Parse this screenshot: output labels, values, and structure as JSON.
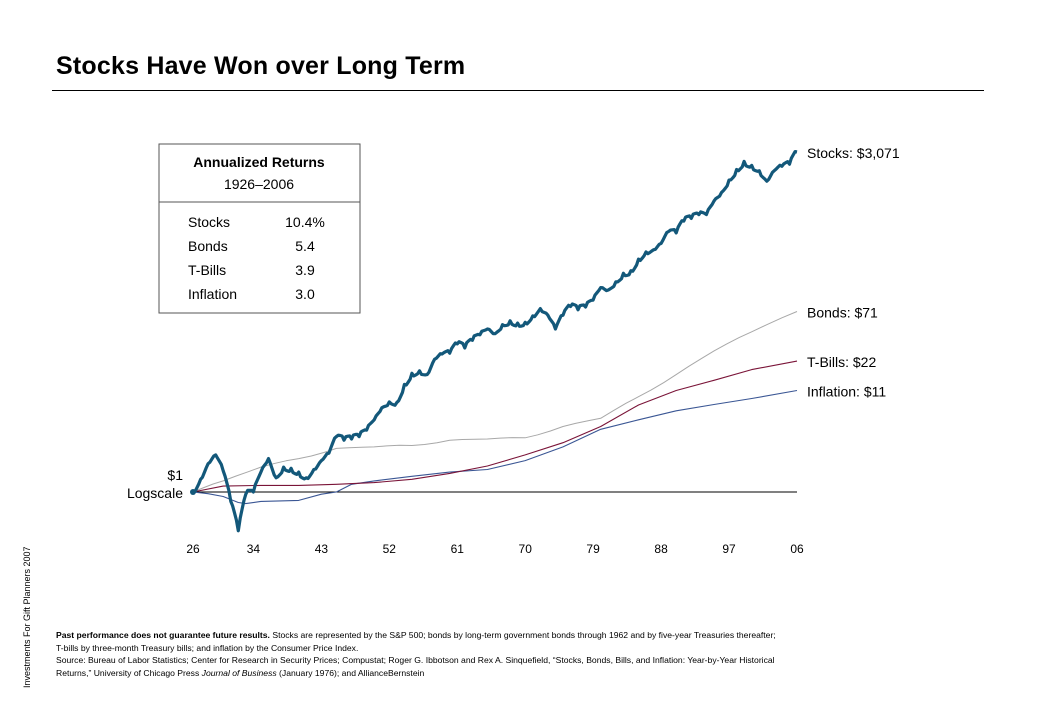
{
  "title": "Stocks Have Won over Long Term",
  "side_note": "Investments For Gift Planners 2007",
  "footnote": {
    "bold": "Past performance does not guarantee future results.",
    "line1": " Stocks are represented by the S&P 500; bonds by long-term government bonds through 1962 and by five-year Treasuries thereafter;",
    "line2": "T-bills by three-month Treasury bills; and inflation by the Consumer Price Index.",
    "line3": "Source: Bureau of Labor Statistics; Center for Research in Security Prices; Compustat; Roger G. Ibbotson and Rex A. Sinquefield, “Stocks, Bonds, Bills, and Inflation: Year-by-Year Historical",
    "line4_a": "Returns,” University of Chicago Press ",
    "line4_journal": "Journal of Business",
    "line4_b": " (January 1976); and AllianceBernstein"
  },
  "returns_box": {
    "title": "Annualized  Returns",
    "period": "1926–2006",
    "rows": [
      {
        "label": "Stocks",
        "value": "10.4%"
      },
      {
        "label": "Bonds",
        "value": "5.4"
      },
      {
        "label": "T-Bills",
        "value": "3.9"
      },
      {
        "label": "Inflation",
        "value": "3.0"
      }
    ]
  },
  "chart_data": {
    "type": "line",
    "title": "Stocks Have Won over Long Term",
    "y_scale": "log",
    "baseline_label": "$1",
    "baseline_sublabel": "Logscale",
    "x_tick_labels": [
      "26",
      "34",
      "43",
      "52",
      "61",
      "70",
      "79",
      "88",
      "97",
      "06"
    ],
    "x_tick_years": [
      1926,
      1934,
      1943,
      1952,
      1961,
      1970,
      1979,
      1988,
      1997,
      2006
    ],
    "xlim": [
      1926,
      2006
    ],
    "ylim": [
      0.5,
      3500
    ],
    "grid": false,
    "legend": "end-of-line labels",
    "colors": {
      "stocks": "#13587a",
      "bonds": "#a8a8a8",
      "tbills": "#7a1438",
      "inflation": "#3a5694"
    },
    "series": [
      {
        "key": "stocks",
        "name": "Stocks",
        "end_label": "Stocks: $3,071",
        "x": [
          1926,
          1927,
          1928,
          1929,
          1930,
          1931,
          1932,
          1933,
          1934,
          1935,
          1936,
          1937,
          1938,
          1939,
          1940,
          1941,
          1942,
          1943,
          1944,
          1945,
          1946,
          1947,
          1948,
          1949,
          1950,
          1951,
          1952,
          1953,
          1954,
          1955,
          1956,
          1957,
          1958,
          1959,
          1960,
          1961,
          1962,
          1963,
          1964,
          1965,
          1966,
          1967,
          1968,
          1969,
          1970,
          1971,
          1972,
          1973,
          1974,
          1975,
          1976,
          1977,
          1978,
          1979,
          1980,
          1981,
          1982,
          1983,
          1984,
          1985,
          1986,
          1987,
          1988,
          1989,
          1990,
          1991,
          1992,
          1993,
          1994,
          1995,
          1996,
          1997,
          1998,
          1999,
          2000,
          2001,
          2002,
          2003,
          2004,
          2005,
          2006
        ],
        "values": [
          1,
          1.35,
          1.95,
          2.4,
          1.65,
          0.8,
          0.4,
          0.95,
          1.0,
          1.6,
          2.2,
          1.4,
          1.8,
          1.75,
          1.6,
          1.4,
          1.7,
          2.1,
          2.5,
          3.7,
          3.4,
          3.5,
          3.7,
          4.3,
          5.5,
          7.3,
          8.4,
          8.3,
          12.7,
          16.5,
          17.5,
          16,
          23,
          26,
          26.5,
          33,
          30,
          36,
          41,
          47,
          42,
          52,
          57,
          54,
          55,
          64,
          76,
          65,
          47,
          65,
          80,
          74,
          79,
          93,
          125,
          118,
          143,
          175,
          186,
          245,
          290,
          305,
          355,
          470,
          455,
          600,
          640,
          700,
          700,
          965,
          1180,
          1580,
          2030,
          2460,
          2240,
          1970,
          1540,
          1980,
          2190,
          2300,
          3071
        ]
      },
      {
        "key": "bonds",
        "name": "Bonds",
        "end_label": "Bonds: $71",
        "x": [
          1926,
          1930,
          1935,
          1940,
          1945,
          1950,
          1955,
          1960,
          1965,
          1970,
          1975,
          1980,
          1985,
          1990,
          1995,
          2000,
          2006
        ],
        "values": [
          1,
          1.3,
          1.8,
          2.2,
          2.8,
          2.9,
          3.0,
          3.4,
          3.5,
          3.6,
          4.7,
          5.7,
          9.5,
          16,
          28,
          44,
          71
        ]
      },
      {
        "key": "tbills",
        "name": "T-Bills",
        "end_label": "T-Bills: $22",
        "x": [
          1926,
          1930,
          1935,
          1940,
          1945,
          1950,
          1955,
          1960,
          1965,
          1970,
          1975,
          1980,
          1985,
          1990,
          1995,
          2000,
          2006
        ],
        "values": [
          1,
          1.15,
          1.17,
          1.17,
          1.2,
          1.25,
          1.35,
          1.55,
          1.85,
          2.4,
          3.2,
          4.7,
          7.8,
          11,
          14,
          18,
          22
        ]
      },
      {
        "key": "inflation",
        "name": "Inflation",
        "end_label": "Inflation: $11",
        "x": [
          1926,
          1928,
          1930,
          1932,
          1933,
          1935,
          1940,
          1943,
          1945,
          1947,
          1950,
          1955,
          1960,
          1965,
          1970,
          1975,
          1980,
          1985,
          1990,
          1995,
          2000,
          2006
        ],
        "values": [
          1,
          0.96,
          0.9,
          0.78,
          0.76,
          0.8,
          0.82,
          0.95,
          1.0,
          1.2,
          1.3,
          1.45,
          1.6,
          1.7,
          2.1,
          2.9,
          4.4,
          5.5,
          6.8,
          7.9,
          9.1,
          11
        ]
      }
    ]
  }
}
